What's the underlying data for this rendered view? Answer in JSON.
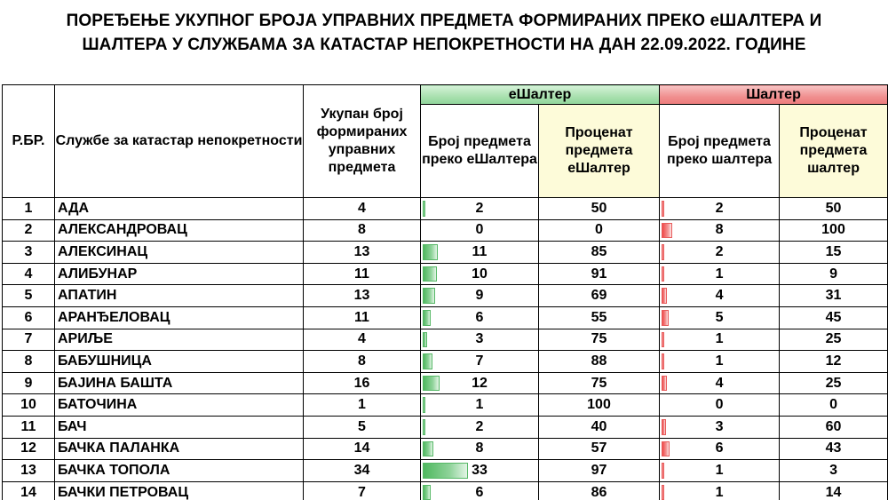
{
  "title": {
    "line1": "ПОРЕЂЕЊЕ УКУПНОГ БРОЈА УПРАВНИХ ПРЕДМЕТА ФОРМИРАНИХ ПРЕКО еШАЛТЕРА И",
    "line2": "ШАЛТЕРА У СЛУЖБАМА ЗА КАТАСТАР НЕПОКРЕТНОСТИ НА ДАН 22.09.2022. ГОДИНЕ"
  },
  "header": {
    "rb": "Р.БР.",
    "office": "Службе за катастар непокретности",
    "total": "Укупан број формираних управних предмета",
    "eshalter_group": "еШалтер",
    "eshalter_count": "Број предмета преко еШалтера",
    "eshalter_pct": "Проценат предмета еШалтер",
    "shalter_group": "Шалтер",
    "shalter_count": "Број предмета преко шалтера",
    "shalter_pct": "Проценат предмета шалтер"
  },
  "colors": {
    "green_bar": "#4fb85f",
    "red_bar": "#f04848",
    "pct_header": "#fdfbd9"
  },
  "bar_scale_max": 34,
  "rows": [
    {
      "rb": "1",
      "name": "АДА",
      "total": "4",
      "e_count": 2,
      "e_pct": "50",
      "s_count": 2,
      "s_pct": "50"
    },
    {
      "rb": "2",
      "name": "АЛЕКСАНДРОВАЦ",
      "total": "8",
      "e_count": 0,
      "e_pct": "0",
      "s_count": 8,
      "s_pct": "100"
    },
    {
      "rb": "3",
      "name": "АЛЕКСИНАЦ",
      "total": "13",
      "e_count": 11,
      "e_pct": "85",
      "s_count": 2,
      "s_pct": "15"
    },
    {
      "rb": "4",
      "name": "АЛИБУНАР",
      "total": "11",
      "e_count": 10,
      "e_pct": "91",
      "s_count": 1,
      "s_pct": "9"
    },
    {
      "rb": "5",
      "name": "АПАТИН",
      "total": "13",
      "e_count": 9,
      "e_pct": "69",
      "s_count": 4,
      "s_pct": "31"
    },
    {
      "rb": "6",
      "name": "АРАНЂЕЛОВАЦ",
      "total": "11",
      "e_count": 6,
      "e_pct": "55",
      "s_count": 5,
      "s_pct": "45"
    },
    {
      "rb": "7",
      "name": "АРИЉЕ",
      "total": "4",
      "e_count": 3,
      "e_pct": "75",
      "s_count": 1,
      "s_pct": "25"
    },
    {
      "rb": "8",
      "name": "БАБУШНИЦА",
      "total": "8",
      "e_count": 7,
      "e_pct": "88",
      "s_count": 1,
      "s_pct": "12"
    },
    {
      "rb": "9",
      "name": "БАЈИНА БАШТА",
      "total": "16",
      "e_count": 12,
      "e_pct": "75",
      "s_count": 4,
      "s_pct": "25"
    },
    {
      "rb": "10",
      "name": "БАТОЧИНА",
      "total": "1",
      "e_count": 1,
      "e_pct": "100",
      "s_count": 0,
      "s_pct": "0"
    },
    {
      "rb": "11",
      "name": "БАЧ",
      "total": "5",
      "e_count": 2,
      "e_pct": "40",
      "s_count": 3,
      "s_pct": "60"
    },
    {
      "rb": "12",
      "name": "БАЧКА ПАЛАНКА",
      "total": "14",
      "e_count": 8,
      "e_pct": "57",
      "s_count": 6,
      "s_pct": "43"
    },
    {
      "rb": "13",
      "name": "БАЧКА ТОПОЛА",
      "total": "34",
      "e_count": 33,
      "e_pct": "97",
      "s_count": 1,
      "s_pct": "3"
    },
    {
      "rb": "14",
      "name": "БАЧКИ ПЕТРОВАЦ",
      "total": "7",
      "e_count": 6,
      "e_pct": "86",
      "s_count": 1,
      "s_pct": "14"
    }
  ]
}
